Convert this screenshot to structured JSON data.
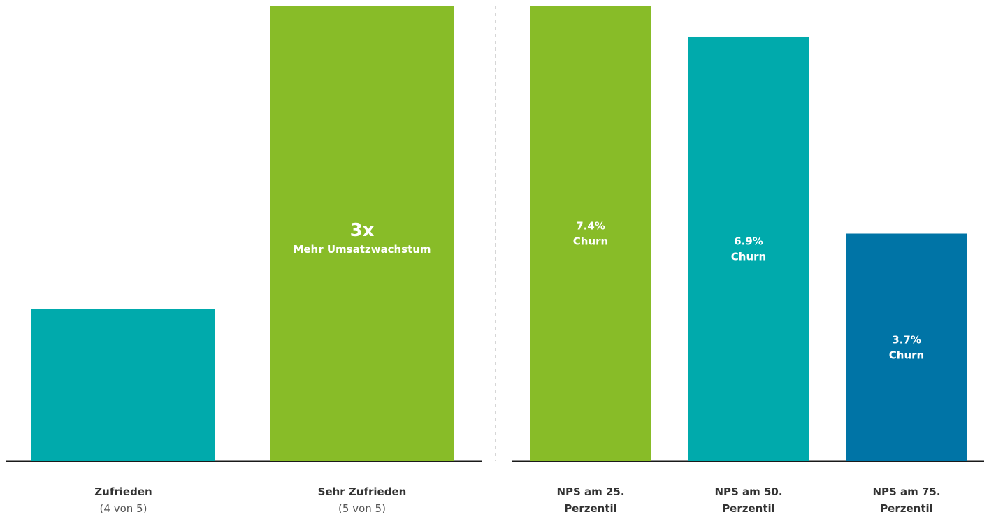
{
  "chart_data": [
    {
      "type": "bar",
      "categories": [
        "Zufrieden",
        "Sehr Zufrieden"
      ],
      "category_sublabels": [
        "(4 von 5)",
        "(5 von 5)"
      ],
      "values": [
        1,
        3
      ],
      "ylim": [
        0,
        3
      ],
      "colors": [
        "#00aaac",
        "#88bc28"
      ],
      "bar_labels": [
        {
          "value": "",
          "text": ""
        },
        {
          "value": "3x",
          "text": "Mehr Umsatzwachstum"
        }
      ]
    },
    {
      "type": "bar",
      "categories": [
        "NPS am 25. Perzentil",
        "NPS am 50. Perzentil",
        "NPS am 75. Perzentil"
      ],
      "category_lines": [
        [
          "NPS am 25.",
          "Perzentil"
        ],
        [
          "NPS am 50.",
          "Perzentil"
        ],
        [
          "NPS am 75.",
          "Perzentil"
        ]
      ],
      "values": [
        7.4,
        6.9,
        3.7
      ],
      "ylim": [
        0,
        7.4
      ],
      "colors": [
        "#88bc28",
        "#00aaac",
        "#0074a6"
      ],
      "bar_labels": [
        {
          "value": "7.4%",
          "text": "Churn"
        },
        {
          "value": "6.9%",
          "text": "Churn"
        },
        {
          "value": "3.7%",
          "text": "Churn"
        }
      ]
    }
  ],
  "colors": {
    "baseline": "#1a1a1a",
    "divider": "#c8c8c8"
  }
}
